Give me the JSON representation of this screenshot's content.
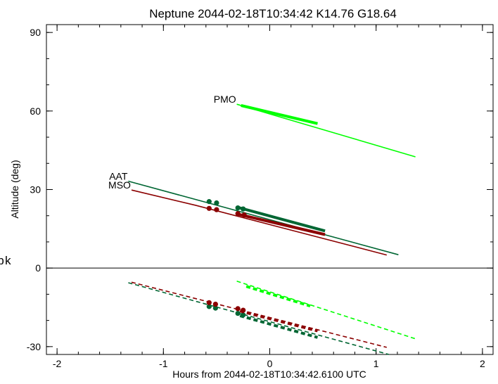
{
  "stray_text": "pk",
  "chart_data": {
    "type": "line",
    "title": "Neptune 2044-02-18T10:34:42  K14.76  G18.64",
    "xlabel": "Hours from 2044-02-18T10:34:42.6100 UTC",
    "ylabel": "Altitude (deg)",
    "xlim": [
      -2.1,
      2.1
    ],
    "ylim": [
      -33,
      93
    ],
    "xticks": [
      -2,
      -1,
      0,
      1,
      2
    ],
    "yticks": [
      -30,
      0,
      30,
      60,
      90
    ],
    "grid": false,
    "zero_line": true,
    "colors": {
      "PMO": "#00ff00",
      "AAT": "#006633",
      "MSO": "#8b0000"
    },
    "series": [
      {
        "name": "PMO",
        "color": "#00ff00",
        "altitude": {
          "x": [
            -0.31,
            1.37
          ],
          "y": [
            62.6,
            42.5
          ]
        },
        "thick": {
          "x": [
            -0.27,
            0.45
          ],
          "y": [
            62.1,
            55.2
          ]
        },
        "negative": {
          "x": [
            -0.31,
            1.37
          ],
          "y": [
            -5.0,
            -27.0
          ]
        },
        "negative_thick": {
          "x": [
            -0.22,
            0.38
          ],
          "y": [
            -7.0,
            -14.5
          ]
        }
      },
      {
        "name": "AAT",
        "color": "#006633",
        "altitude": {
          "x": [
            -1.33,
            1.21
          ],
          "y": [
            33.2,
            5.1
          ]
        },
        "thick": {
          "x": [
            -0.31,
            0.52
          ],
          "y": [
            23.3,
            14.2
          ]
        },
        "dots": {
          "x": [
            -0.57,
            -0.5,
            -0.3,
            -0.25
          ],
          "y": [
            25.4,
            24.9,
            23.0,
            22.6
          ]
        },
        "negative": {
          "x": [
            -1.33,
            1.12
          ],
          "y": [
            -5.6,
            -33.0
          ]
        },
        "negative_thick": {
          "x": [
            -0.28,
            0.45
          ],
          "y": [
            -18.2,
            -26.5
          ]
        },
        "negative_dots": {
          "x": [
            -0.57,
            -0.51,
            -0.3,
            -0.25
          ],
          "y": [
            -14.7,
            -15.3,
            -17.3,
            -17.9
          ]
        }
      },
      {
        "name": "MSO",
        "color": "#8b0000",
        "altitude": {
          "x": [
            -1.3,
            -0.7,
            1.1
          ],
          "y": [
            29.8,
            24.0,
            5.0
          ]
        },
        "thick": {
          "x": [
            -0.3,
            0.52
          ],
          "y": [
            20.6,
            12.8
          ]
        },
        "dots": {
          "x": [
            -0.57,
            -0.5,
            -0.3,
            -0.24
          ],
          "y": [
            22.8,
            22.3,
            20.8,
            20.3
          ]
        },
        "negative": {
          "x": [
            -1.3,
            1.1
          ],
          "y": [
            -5.4,
            -30.3
          ]
        },
        "negative_thick": {
          "x": [
            -0.28,
            0.45
          ],
          "y": [
            -16.4,
            -24.0
          ]
        },
        "negative_dots": {
          "x": [
            -0.57,
            -0.51,
            -0.3,
            -0.25
          ],
          "y": [
            -13.2,
            -13.8,
            -15.5,
            -16.1
          ]
        }
      }
    ],
    "labels": [
      {
        "text": "PMO",
        "series": "PMO"
      },
      {
        "text": "AAT",
        "series": "AAT"
      },
      {
        "text": "MSO",
        "series": "MSO"
      }
    ]
  }
}
